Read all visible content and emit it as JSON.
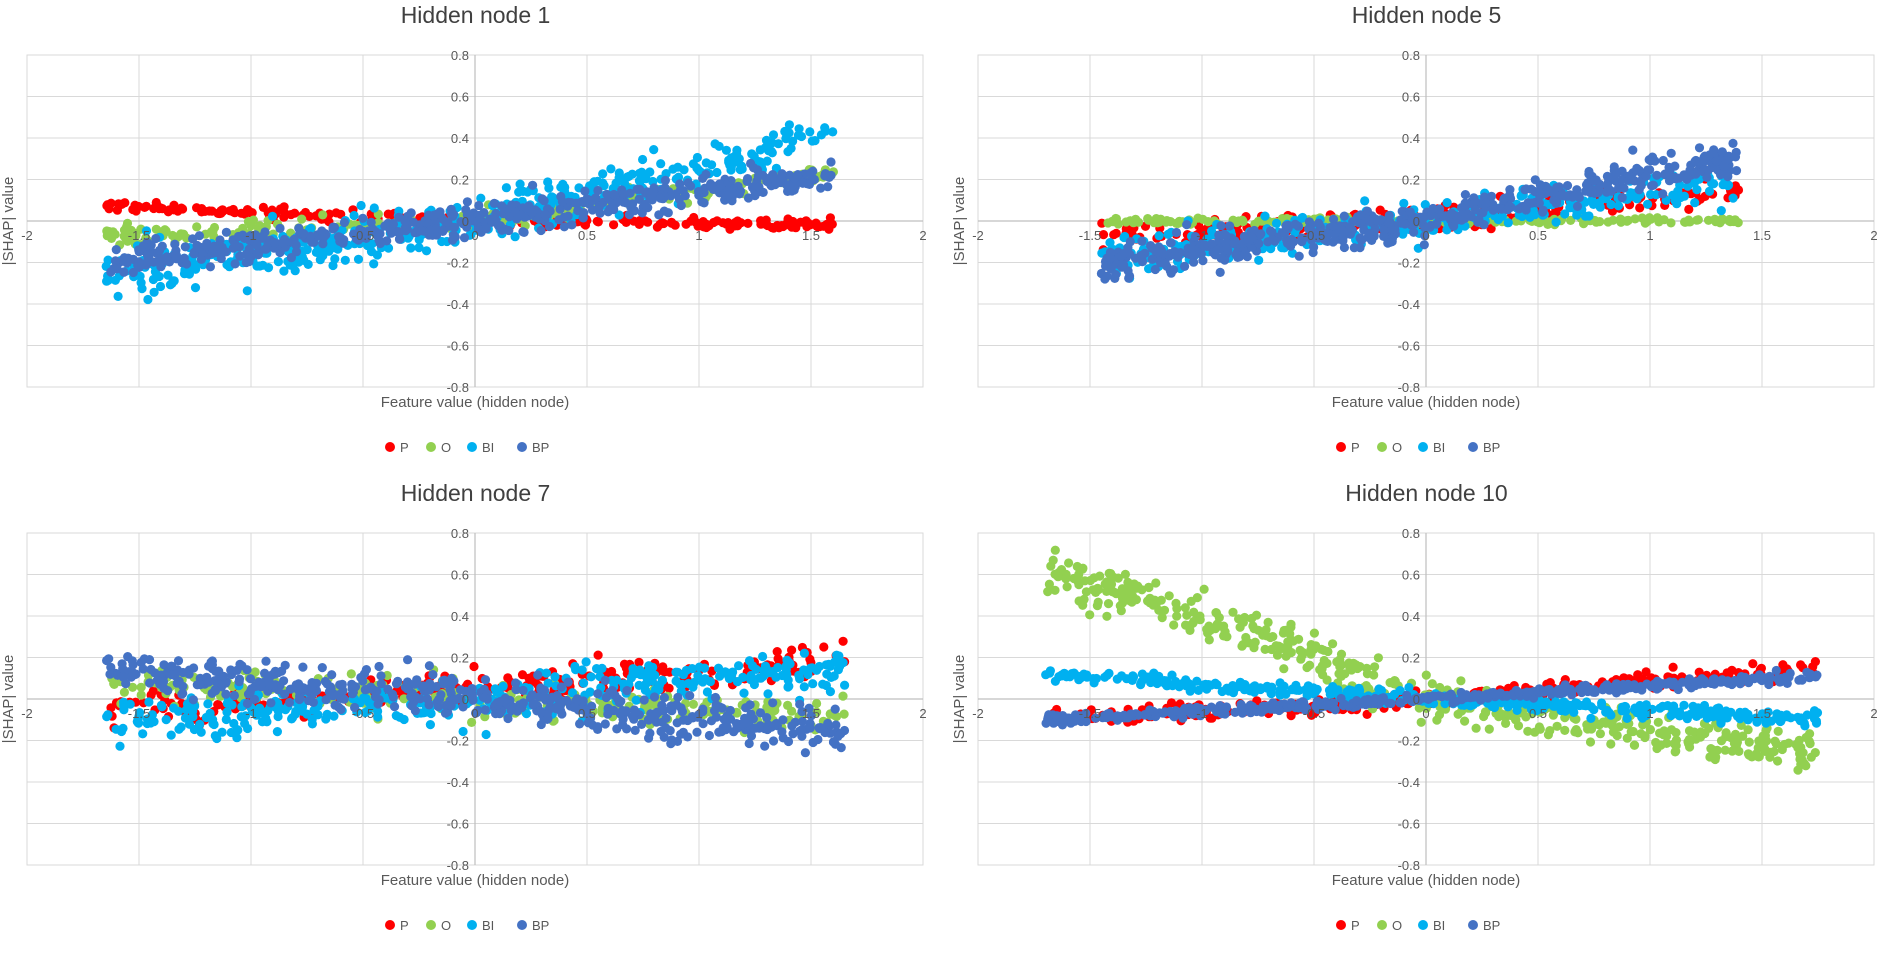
{
  "chart_data": [
    {
      "type": "scatter",
      "title": "Hidden node 1",
      "xlabel": "Feature value (hidden node)",
      "ylabel": "|SHAP| value",
      "xlim": [
        -2,
        2
      ],
      "ylim": [
        -0.8,
        0.8
      ],
      "xticks": [
        -2,
        -1.5,
        -1,
        -0.5,
        0,
        0.5,
        1,
        1.5,
        2
      ],
      "xtick_labels": [
        "-2",
        "-1.5",
        "-1",
        "-0.5",
        "0",
        "0.5",
        "1",
        "1.5",
        "2"
      ],
      "yticks": [
        -0.8,
        -0.6,
        -0.4,
        -0.2,
        0,
        0.2,
        0.4,
        0.6,
        0.8
      ],
      "ytick_labels": [
        "-0.8",
        "-0.6",
        "-0.4",
        "-0.2",
        "0",
        "0.2",
        "0.4",
        "0.6",
        "0.8"
      ],
      "legend_position": "bottom",
      "series": [
        {
          "name": "P",
          "color": "#ff0000",
          "x_range": [
            -1.65,
            1.6
          ],
          "n": 220,
          "noise": 0.012,
          "trend": [
            [
              -1.65,
              0.07
            ],
            [
              0,
              0.0
            ],
            [
              1.6,
              -0.02
            ]
          ]
        },
        {
          "name": "O",
          "color": "#92d050",
          "x_range": [
            -1.65,
            1.6
          ],
          "n": 240,
          "noise": 0.022,
          "trend": [
            [
              -1.65,
              -0.07
            ],
            [
              0,
              0.0
            ],
            [
              1.6,
              0.24
            ]
          ]
        },
        {
          "name": "BI",
          "color": "#00b0f0",
          "x_range": [
            -1.65,
            1.6
          ],
          "n": 420,
          "noise": 0.06,
          "trend": [
            [
              -1.65,
              -0.28
            ],
            [
              0,
              0.0
            ],
            [
              1.6,
              0.42
            ]
          ]
        },
        {
          "name": "BP",
          "color": "#4472c4",
          "x_range": [
            -1.65,
            1.6
          ],
          "n": 520,
          "noise": 0.035,
          "trend": [
            [
              -1.65,
              -0.2
            ],
            [
              0,
              0.0
            ],
            [
              1.6,
              0.22
            ]
          ]
        }
      ]
    },
    {
      "type": "scatter",
      "title": "Hidden node 5",
      "xlabel": "Feature value (hidden node)",
      "ylabel": "|SHAP| value",
      "xlim": [
        -2,
        2
      ],
      "ylim": [
        -0.8,
        0.8
      ],
      "xticks": [
        -2,
        -1.5,
        -1,
        -0.5,
        0,
        0.5,
        1,
        1.5,
        2
      ],
      "xtick_labels": [
        "-2",
        "-1.5",
        "-1",
        "-0.5",
        "0",
        "0.5",
        "1",
        "1.5",
        "2"
      ],
      "yticks": [
        -0.8,
        -0.6,
        -0.4,
        -0.2,
        0,
        0.2,
        0.4,
        0.6,
        0.8
      ],
      "ytick_labels": [
        "-0.8",
        "-0.6",
        "-0.4",
        "-0.2",
        "0",
        "0.2",
        "0.4",
        "0.6",
        "0.8"
      ],
      "legend_position": "bottom",
      "series": [
        {
          "name": "P",
          "color": "#ff0000",
          "x_range": [
            -1.45,
            1.4
          ],
          "n": 180,
          "noise": 0.03,
          "trend": [
            [
              -1.45,
              -0.05
            ],
            [
              0,
              0.0
            ],
            [
              1.4,
              0.15
            ]
          ]
        },
        {
          "name": "O",
          "color": "#92d050",
          "x_range": [
            -1.45,
            1.4
          ],
          "n": 200,
          "noise": 0.008,
          "trend": [
            [
              -1.45,
              0.0
            ],
            [
              0,
              0.0
            ],
            [
              1.4,
              0.0
            ]
          ]
        },
        {
          "name": "BI",
          "color": "#00b0f0",
          "x_range": [
            -1.45,
            1.4
          ],
          "n": 320,
          "noise": 0.045,
          "trend": [
            [
              -1.45,
              -0.17
            ],
            [
              0,
              0.0
            ],
            [
              1.4,
              0.2
            ]
          ]
        },
        {
          "name": "BP",
          "color": "#4472c4",
          "x_range": [
            -1.45,
            1.4
          ],
          "n": 520,
          "noise": 0.04,
          "trend": [
            [
              -1.45,
              -0.2
            ],
            [
              0,
              0.0
            ],
            [
              1.4,
              0.3
            ]
          ]
        }
      ]
    },
    {
      "type": "scatter",
      "title": "Hidden node 7",
      "xlabel": "Feature value (hidden node)",
      "ylabel": "|SHAP| value",
      "xlim": [
        -2,
        2
      ],
      "ylim": [
        -0.8,
        0.8
      ],
      "xticks": [
        -2,
        -1.5,
        -1,
        -0.5,
        0,
        0.5,
        1,
        1.5,
        2
      ],
      "xtick_labels": [
        "-2",
        "-1.5",
        "-1",
        "-0.5",
        "0",
        "0.5",
        "1",
        "1.5",
        "2"
      ],
      "yticks": [
        -0.8,
        -0.6,
        -0.4,
        -0.2,
        0,
        0.2,
        0.4,
        0.6,
        0.8
      ],
      "ytick_labels": [
        "-0.8",
        "-0.6",
        "-0.4",
        "-0.2",
        "0",
        "0.2",
        "0.4",
        "0.6",
        "0.8"
      ],
      "legend_position": "bottom",
      "series": [
        {
          "name": "P",
          "color": "#ff0000",
          "x_range": [
            -1.65,
            1.65
          ],
          "n": 260,
          "noise": 0.04,
          "trend": [
            [
              -1.65,
              -0.06
            ],
            [
              0,
              0.05
            ],
            [
              1.65,
              0.18
            ]
          ]
        },
        {
          "name": "O",
          "color": "#92d050",
          "x_range": [
            -1.65,
            1.65
          ],
          "n": 260,
          "noise": 0.04,
          "trend": [
            [
              -1.65,
              0.08
            ],
            [
              0,
              0.0
            ],
            [
              1.65,
              -0.08
            ]
          ]
        },
        {
          "name": "BI",
          "color": "#00b0f0",
          "x_range": [
            -1.65,
            1.65
          ],
          "n": 360,
          "noise": 0.05,
          "trend": [
            [
              -1.65,
              -0.12
            ],
            [
              0,
              0.0
            ],
            [
              1.65,
              0.15
            ]
          ]
        },
        {
          "name": "BP",
          "color": "#4472c4",
          "x_range": [
            -1.65,
            1.65
          ],
          "n": 520,
          "noise": 0.05,
          "trend": [
            [
              -1.65,
              0.14
            ],
            [
              0,
              0.0
            ],
            [
              1.65,
              -0.16
            ]
          ]
        }
      ]
    },
    {
      "type": "scatter",
      "title": "Hidden node 10",
      "xlabel": "Feature value (hidden node)",
      "ylabel": "|SHAP| value",
      "xlim": [
        -2,
        2
      ],
      "ylim": [
        -0.8,
        0.8
      ],
      "xticks": [
        -2,
        -1.5,
        -1,
        -0.5,
        0,
        0.5,
        1,
        1.5,
        2
      ],
      "xtick_labels": [
        "-2",
        "-1.5",
        "-1",
        "-0.5",
        "0",
        "0.5",
        "1",
        "1.5",
        "2"
      ],
      "yticks": [
        -0.8,
        -0.6,
        -0.4,
        -0.2,
        0,
        0.2,
        0.4,
        0.6,
        0.8
      ],
      "ytick_labels": [
        "-0.8",
        "-0.6",
        "-0.4",
        "-0.2",
        "0",
        "0.2",
        "0.4",
        "0.6",
        "0.8"
      ],
      "legend_position": "bottom",
      "series": [
        {
          "name": "P",
          "color": "#ff0000",
          "x_range": [
            -1.7,
            1.75
          ],
          "n": 300,
          "noise": 0.02,
          "trend": [
            [
              -1.7,
              -0.1
            ],
            [
              0,
              0.0
            ],
            [
              1.75,
              0.15
            ]
          ]
        },
        {
          "name": "O",
          "color": "#92d050",
          "x_range": [
            -1.7,
            1.75
          ],
          "n": 480,
          "noise": 0.05,
          "trend": [
            [
              -1.7,
              0.6
            ],
            [
              -1.0,
              0.4
            ],
            [
              0,
              0.0
            ],
            [
              1.75,
              -0.27
            ]
          ]
        },
        {
          "name": "BI",
          "color": "#00b0f0",
          "x_range": [
            -1.7,
            1.75
          ],
          "n": 380,
          "noise": 0.016,
          "trend": [
            [
              -1.7,
              0.12
            ],
            [
              0,
              0.0
            ],
            [
              1.75,
              -0.1
            ]
          ]
        },
        {
          "name": "BP",
          "color": "#4472c4",
          "x_range": [
            -1.7,
            1.75
          ],
          "n": 440,
          "noise": 0.012,
          "trend": [
            [
              -1.7,
              -0.1
            ],
            [
              0,
              0.0
            ],
            [
              1.75,
              0.11
            ]
          ]
        }
      ]
    }
  ]
}
